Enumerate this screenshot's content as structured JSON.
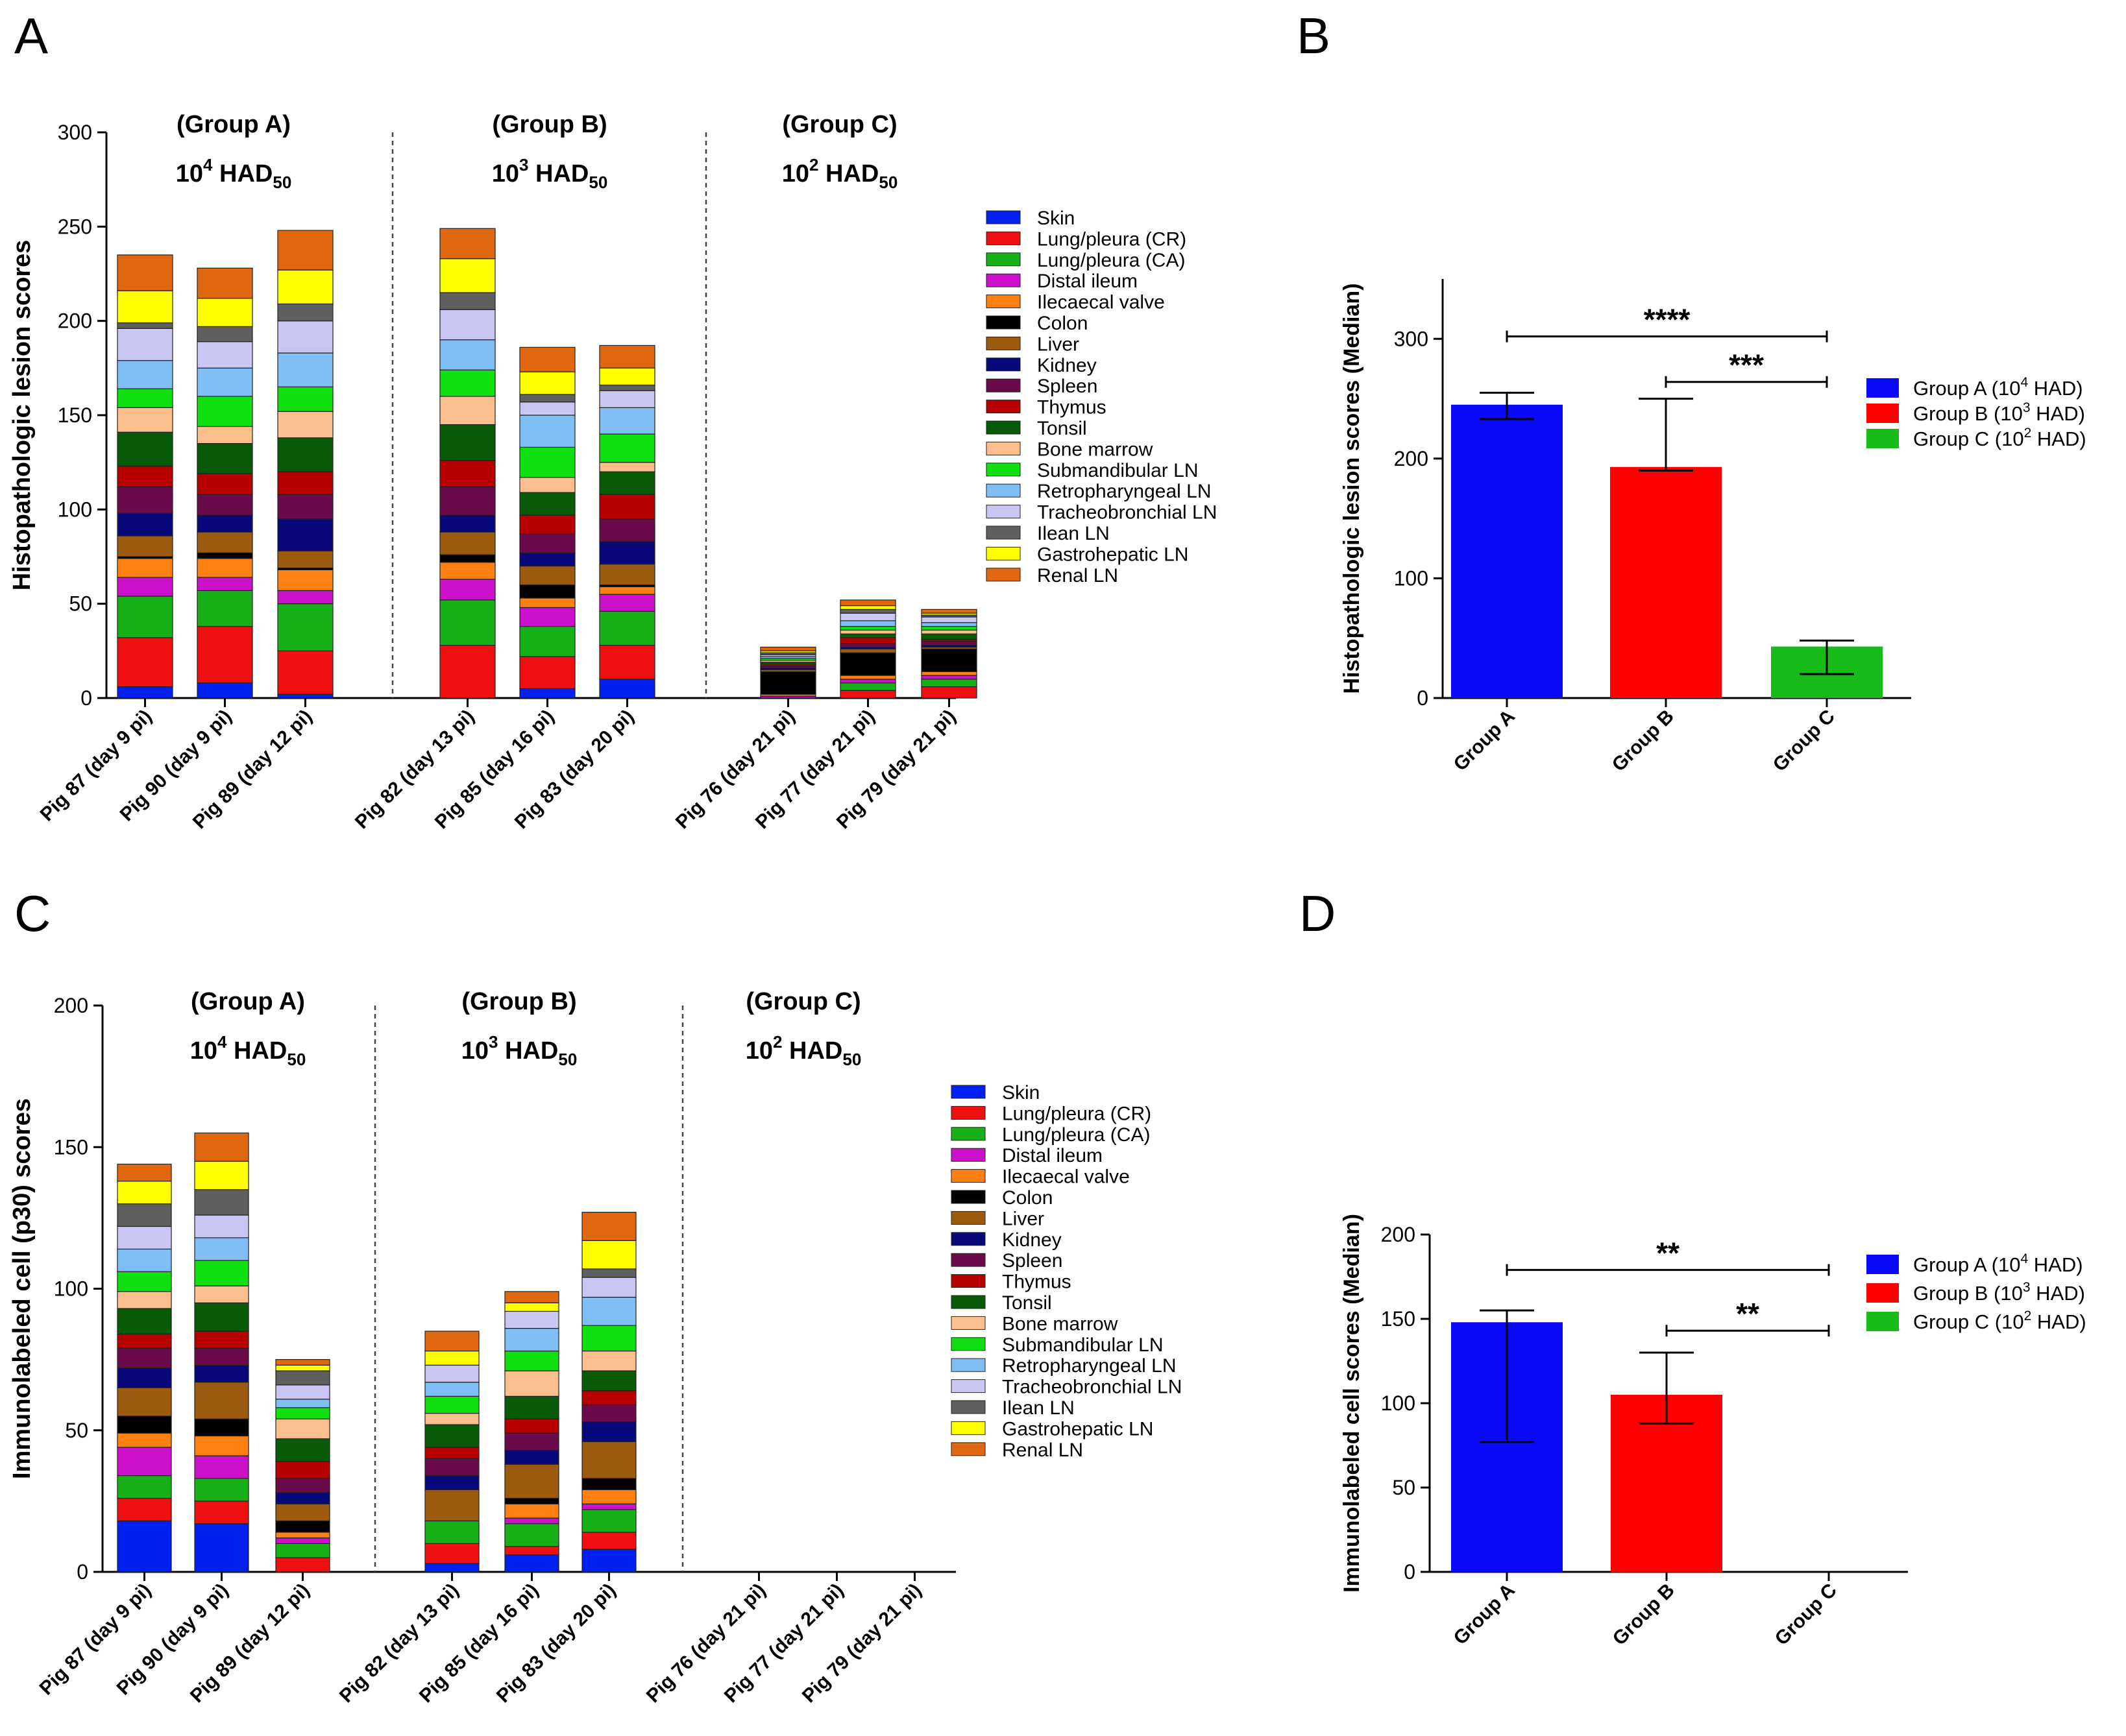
{
  "colors": {
    "organs": [
      "#0020f0",
      "#ee1010",
      "#18b018",
      "#cc10cc",
      "#ff7f10",
      "#000000",
      "#9c5a0e",
      "#08087a",
      "#6a0a4a",
      "#b80000",
      "#075a07",
      "#fbbf8e",
      "#10e010",
      "#7fbff5",
      "#cac6f4",
      "#5f5f5f",
      "#ffff00",
      "#e06810"
    ],
    "groups": [
      "#0a0af8",
      "#ff0000",
      "#18bc18"
    ]
  },
  "chart_data": [
    {
      "panel": "A",
      "type": "bar",
      "stacked": true,
      "ylabel": "Histopathologic lesion scores",
      "ylim": [
        0,
        300
      ],
      "yticks": [
        "0",
        "50",
        "100",
        "150",
        "200",
        "250",
        "300"
      ],
      "categories": [
        "Pig 87 (day 9 pi)",
        "Pig 90 (day 9 pi)",
        "Pig 89 (day 12 pi)",
        "Pig 82 (day 13 pi)",
        "Pig 85 (day 16 pi)",
        "Pig 83 (day 20 pi)",
        "Pig 76 (day 21 pi)",
        "Pig 77 (day 21 pi)",
        "Pig 79 (day 21 pi)"
      ],
      "group_headers": [
        {
          "name": "(Group A)",
          "base": "10",
          "exp": "4",
          "unit": "HAD",
          "sub": "50"
        },
        {
          "name": "(Group B)",
          "base": "10",
          "exp": "3",
          "unit": "HAD",
          "sub": "50"
        },
        {
          "name": "(Group C)",
          "base": "10",
          "exp": "2",
          "unit": "HAD",
          "sub": "50"
        }
      ],
      "legend": [
        "Skin",
        "Lung/pleura (CR)",
        "Lung/pleura (CA)",
        "Distal ileum",
        "Ilecaecal valve",
        "Colon",
        "Liver",
        "Kidney",
        "Spleen",
        "Thymus",
        "Tonsil",
        "Bone marrow",
        "Submandibular LN",
        "Retropharyngeal LN",
        "Tracheobronchial LN",
        "Ilean LN",
        "Gastrohepatic LN",
        "Renal LN"
      ],
      "series": [
        {
          "name": "Skin",
          "values": [
            6,
            8,
            2,
            0,
            5,
            10,
            0,
            0,
            0
          ]
        },
        {
          "name": "Lung/pleura (CR)",
          "values": [
            26,
            30,
            23,
            28,
            17,
            18,
            0,
            4,
            6
          ]
        },
        {
          "name": "Lung/pleura (CA)",
          "values": [
            22,
            19,
            25,
            24,
            16,
            18,
            0,
            4,
            4
          ]
        },
        {
          "name": "Distal ileum",
          "values": [
            10,
            7,
            7,
            11,
            10,
            9,
            1,
            2,
            2
          ]
        },
        {
          "name": "Ilecaecal valve",
          "values": [
            10,
            10,
            11,
            9,
            5,
            4,
            1,
            2,
            2
          ]
        },
        {
          "name": "Colon",
          "values": [
            1,
            3,
            1,
            4,
            7,
            1,
            12,
            12,
            12
          ]
        },
        {
          "name": "Liver",
          "values": [
            11,
            11,
            9,
            12,
            10,
            11,
            1,
            2,
            1
          ]
        },
        {
          "name": "Kidney",
          "values": [
            12,
            9,
            17,
            9,
            7,
            12,
            1,
            1,
            1
          ]
        },
        {
          "name": "Spleen",
          "values": [
            14,
            11,
            13,
            15,
            10,
            12,
            1,
            2,
            2
          ]
        },
        {
          "name": "Thymus",
          "values": [
            11,
            11,
            12,
            14,
            10,
            13,
            1,
            3,
            1
          ]
        },
        {
          "name": "Tonsil",
          "values": [
            18,
            16,
            18,
            19,
            12,
            12,
            1,
            2,
            3
          ]
        },
        {
          "name": "Bone marrow",
          "values": [
            13,
            9,
            14,
            15,
            8,
            5,
            1,
            2,
            2
          ]
        },
        {
          "name": "Submandibular LN",
          "values": [
            10,
            16,
            13,
            14,
            16,
            15,
            1,
            2,
            2
          ]
        },
        {
          "name": "Retropharyngeal LN",
          "values": [
            15,
            15,
            18,
            16,
            17,
            14,
            1,
            3,
            2
          ]
        },
        {
          "name": "Tracheobronchial LN",
          "values": [
            17,
            14,
            17,
            16,
            7,
            9,
            1,
            4,
            3
          ]
        },
        {
          "name": "Ilean LN",
          "values": [
            3,
            8,
            9,
            9,
            4,
            3,
            1,
            2,
            1
          ]
        },
        {
          "name": "Gastrohepatic LN",
          "values": [
            17,
            15,
            18,
            18,
            12,
            9,
            1,
            2,
            1
          ]
        },
        {
          "name": "Renal LN",
          "values": [
            19,
            16,
            21,
            16,
            13,
            12,
            2,
            3,
            2
          ]
        }
      ]
    },
    {
      "panel": "B",
      "type": "bar",
      "ylabel": "Histopathologic lesion scores (Median)",
      "ylim": [
        0,
        350
      ],
      "yticks": [
        "0",
        "100",
        "200",
        "300"
      ],
      "categories": [
        "Group A",
        "Group B",
        "Group C"
      ],
      "values": [
        245,
        193,
        43
      ],
      "error_low": [
        233,
        190,
        20
      ],
      "error_high": [
        255,
        250,
        48
      ],
      "legend": [
        {
          "label": "Group A",
          "base": "10",
          "exp": "4",
          "unit": "HAD"
        },
        {
          "label": "Group B",
          "base": "10",
          "exp": "3",
          "unit": "HAD"
        },
        {
          "label": "Group C",
          "base": "10",
          "exp": "2",
          "unit": "HAD"
        }
      ],
      "significance": [
        {
          "from": 0,
          "to": 2,
          "y": 302,
          "label": "****"
        },
        {
          "from": 1,
          "to": 2,
          "y": 264,
          "label": "***"
        }
      ]
    },
    {
      "panel": "C",
      "type": "bar",
      "stacked": true,
      "ylabel": "Immunolabeled cell (p30) scores",
      "ylim": [
        0,
        200
      ],
      "yticks": [
        "0",
        "50",
        "100",
        "150",
        "200"
      ],
      "categories": [
        "Pig 87 (day 9 pi)",
        "Pig 90 (day 9 pi)",
        "Pig 89 (day 12 pi)",
        "Pig 82 (day 13 pi)",
        "Pig 85 (day 16 pi)",
        "Pig 83 (day 20 pi)",
        "Pig 76 (day 21 pi)",
        "Pig 77 (day 21 pi)",
        "Pig 79 (day 21 pi)"
      ],
      "group_headers": [
        {
          "name": "(Group A)",
          "base": "10",
          "exp": "4",
          "unit": "HAD",
          "sub": "50"
        },
        {
          "name": "(Group B)",
          "base": "10",
          "exp": "3",
          "unit": "HAD",
          "sub": "50"
        },
        {
          "name": "(Group C)",
          "base": "10",
          "exp": "2",
          "unit": "HAD",
          "sub": "50"
        }
      ],
      "legend": [
        "Skin",
        "Lung/pleura (CR)",
        "Lung/pleura (CA)",
        "Distal ileum",
        "Ilecaecal valve",
        "Colon",
        "Liver",
        "Kidney",
        "Spleen",
        "Thymus",
        "Tonsil",
        "Bone marrow",
        "Submandibular LN",
        "Retropharyngeal LN",
        "Tracheobronchial LN",
        "Ilean LN",
        "Gastrohepatic LN",
        "Renal LN"
      ],
      "series": [
        {
          "name": "Skin",
          "values": [
            18,
            17,
            0,
            3,
            6,
            8,
            0,
            0,
            0
          ]
        },
        {
          "name": "Lung/pleura (CR)",
          "values": [
            8,
            8,
            5,
            7,
            3,
            6,
            0,
            0,
            0
          ]
        },
        {
          "name": "Lung/pleura (CA)",
          "values": [
            8,
            8,
            5,
            8,
            8,
            8,
            0,
            0,
            0
          ]
        },
        {
          "name": "Distal ileum",
          "values": [
            10,
            8,
            2,
            0,
            2,
            2,
            0,
            0,
            0
          ]
        },
        {
          "name": "Ilecaecal valve",
          "values": [
            5,
            7,
            2,
            0,
            5,
            5,
            0,
            0,
            0
          ]
        },
        {
          "name": "Colon",
          "values": [
            6,
            6,
            4,
            0,
            2,
            4,
            0,
            0,
            0
          ]
        },
        {
          "name": "Liver",
          "values": [
            10,
            13,
            6,
            11,
            12,
            13,
            0,
            0,
            0
          ]
        },
        {
          "name": "Kidney",
          "values": [
            7,
            6,
            4,
            5,
            5,
            7,
            0,
            0,
            0
          ]
        },
        {
          "name": "Spleen",
          "values": [
            7,
            6,
            5,
            6,
            6,
            6,
            0,
            0,
            0
          ]
        },
        {
          "name": "Thymus",
          "values": [
            5,
            6,
            6,
            4,
            5,
            5,
            0,
            0,
            0
          ]
        },
        {
          "name": "Tonsil",
          "values": [
            9,
            10,
            8,
            8,
            8,
            7,
            0,
            0,
            0
          ]
        },
        {
          "name": "Bone marrow",
          "values": [
            6,
            6,
            7,
            4,
            9,
            7,
            0,
            0,
            0
          ]
        },
        {
          "name": "Submandibular LN",
          "values": [
            7,
            9,
            4,
            6,
            7,
            9,
            0,
            0,
            0
          ]
        },
        {
          "name": "Retropharyngeal LN",
          "values": [
            8,
            8,
            3,
            5,
            8,
            10,
            0,
            0,
            0
          ]
        },
        {
          "name": "Tracheobronchial LN",
          "values": [
            8,
            8,
            5,
            6,
            6,
            7,
            0,
            0,
            0
          ]
        },
        {
          "name": "Ilean LN",
          "values": [
            8,
            9,
            5,
            0,
            0,
            3,
            0,
            0,
            0
          ]
        },
        {
          "name": "Gastrohepatic LN",
          "values": [
            8,
            10,
            2,
            5,
            3,
            10,
            0,
            0,
            0
          ]
        },
        {
          "name": "Renal LN",
          "values": [
            6,
            10,
            2,
            7,
            4,
            10,
            0,
            0,
            0
          ]
        }
      ]
    },
    {
      "panel": "D",
      "type": "bar",
      "ylabel": "Immunolabeled cell scores (Median)",
      "ylim": [
        0,
        200
      ],
      "yticks": [
        "0",
        "50",
        "100",
        "150",
        "200"
      ],
      "categories": [
        "Group A",
        "Group B",
        "Group C"
      ],
      "values": [
        148,
        105,
        0
      ],
      "error_low": [
        77,
        88,
        0
      ],
      "error_high": [
        155,
        130,
        0
      ],
      "legend": [
        {
          "label": "Group A",
          "base": "10",
          "exp": "4",
          "unit": "HAD"
        },
        {
          "label": "Group B",
          "base": "10",
          "exp": "3",
          "unit": "HAD"
        },
        {
          "label": "Group C",
          "base": "10",
          "exp": "2",
          "unit": "HAD"
        }
      ],
      "significance": [
        {
          "from": 0,
          "to": 2,
          "y": 179,
          "label": "**"
        },
        {
          "from": 1,
          "to": 2,
          "y": 143,
          "label": "**"
        }
      ]
    }
  ]
}
